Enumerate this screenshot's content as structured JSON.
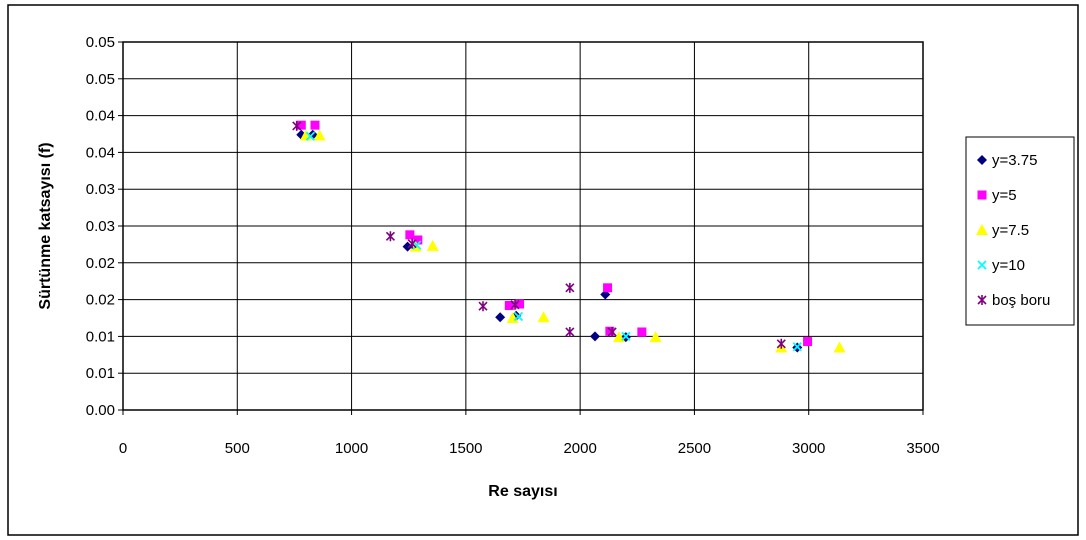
{
  "chart_data": {
    "type": "scatter",
    "xlabel": "Re sayısı",
    "ylabel": "Sürtünme katsayısı (f)",
    "xlim": [
      0,
      3500
    ],
    "ylim": [
      0,
      0.05
    ],
    "x_ticks": [
      0,
      500,
      1000,
      1500,
      2000,
      2500,
      3000,
      3500
    ],
    "x_tick_labels": [
      "0",
      "500",
      "1000",
      "1500",
      "2000",
      "2500",
      "3000",
      "3500"
    ],
    "y_ticks": [
      0,
      0.005,
      0.01,
      0.015,
      0.02,
      0.025,
      0.03,
      0.035,
      0.04,
      0.045,
      0.05
    ],
    "y_tick_labels": [
      "0.00",
      "0.01",
      "0.01",
      "0.02",
      "0.02",
      "0.03",
      "0.03",
      "0.04",
      "0.04",
      "0.05",
      "0.05"
    ],
    "grid": true,
    "legend_position": "right",
    "series": [
      {
        "name": "y=3.75",
        "marker": "diamond",
        "color": "#000080",
        "points": [
          [
            780,
            0.0374
          ],
          [
            830,
            0.0374
          ],
          [
            1245,
            0.0222
          ],
          [
            1650,
            0.0126
          ],
          [
            1720,
            0.0128
          ],
          [
            2065,
            0.01
          ],
          [
            2110,
            0.0157
          ],
          [
            2200,
            0.0099
          ],
          [
            2950,
            0.0085
          ]
        ]
      },
      {
        "name": "y=5",
        "marker": "square",
        "color": "#FF00FF",
        "points": [
          [
            780,
            0.0387
          ],
          [
            840,
            0.0387
          ],
          [
            1255,
            0.0238
          ],
          [
            1290,
            0.0231
          ],
          [
            1690,
            0.0142
          ],
          [
            1735,
            0.0144
          ],
          [
            2120,
            0.0166
          ],
          [
            2130,
            0.0107
          ],
          [
            2270,
            0.0106
          ],
          [
            2995,
            0.0093
          ]
        ]
      },
      {
        "name": "y=7.5",
        "marker": "triangle",
        "color": "#FFFF00",
        "points": [
          [
            800,
            0.0373
          ],
          [
            860,
            0.0373
          ],
          [
            1280,
            0.0222
          ],
          [
            1355,
            0.0223
          ],
          [
            1705,
            0.0125
          ],
          [
            1840,
            0.0126
          ],
          [
            2170,
            0.0099
          ],
          [
            2330,
            0.0099
          ],
          [
            2880,
            0.0085
          ],
          [
            3135,
            0.0085
          ]
        ]
      },
      {
        "name": "y=10",
        "marker": "x",
        "color": "#00FFFF",
        "points": [
          [
            820,
            0.0372
          ],
          [
            1285,
            0.0224
          ],
          [
            1730,
            0.0127
          ],
          [
            2200,
            0.01
          ],
          [
            2950,
            0.0086
          ]
        ]
      },
      {
        "name": "boş boru",
        "marker": "star",
        "color": "#800080",
        "points": [
          [
            760,
            0.0386
          ],
          [
            1170,
            0.0236
          ],
          [
            1265,
            0.0226
          ],
          [
            1575,
            0.0141
          ],
          [
            1715,
            0.0143
          ],
          [
            1955,
            0.0166
          ],
          [
            1955,
            0.0106
          ],
          [
            2140,
            0.0106
          ],
          [
            2880,
            0.009
          ]
        ]
      }
    ]
  }
}
